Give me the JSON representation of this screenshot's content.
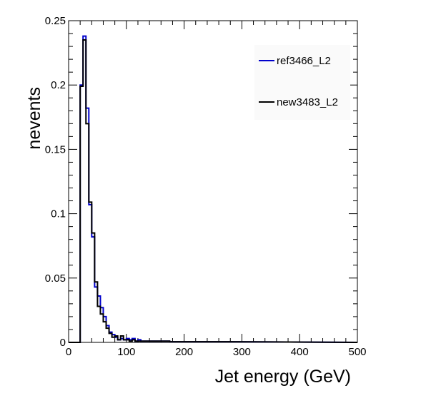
{
  "chart_data": {
    "type": "histogram",
    "xlabel": "Jet energy (GeV)",
    "ylabel": "nevents",
    "xlim": [
      0,
      500
    ],
    "ylim": [
      0,
      0.25
    ],
    "x_ticks": [
      "0",
      "100",
      "200",
      "300",
      "400",
      "500"
    ],
    "y_ticks": [
      "0",
      "0.05",
      "0.1",
      "0.15",
      "0.2",
      "0.25"
    ],
    "bin_width": 5,
    "legend_position": "top-right",
    "series": [
      {
        "name": "ref3466_L2",
        "color": "#0000cc",
        "bin_edges_start": 0,
        "values": [
          0,
          0,
          0,
          0,
          0.2,
          0.238,
          0.182,
          0.107,
          0.082,
          0.043,
          0.036,
          0.027,
          0.02,
          0.013,
          0.008,
          0.006,
          0.004,
          0.002,
          0.003,
          0.002,
          0.003,
          0.002,
          0.003,
          0.001,
          0.002,
          0.001,
          0.001,
          0.001,
          0.001,
          0.001,
          0.001,
          0.001,
          0.001,
          0.001,
          0.001,
          0.0005,
          0.0005,
          0.0005,
          0.0005,
          0.0005,
          0.0005,
          0.0005,
          0.0005,
          0.0005,
          0.0005,
          0.0005,
          0.0005,
          0.0005,
          0.0005,
          0.0005,
          0.0005,
          0.0005,
          0.0005,
          0.0005,
          0.0005,
          0.0005
        ]
      },
      {
        "name": "new3483_L2",
        "color": "#000000",
        "bin_edges_start": 0,
        "values": [
          0,
          0,
          0,
          0,
          0.199,
          0.235,
          0.17,
          0.109,
          0.085,
          0.047,
          0.028,
          0.022,
          0.016,
          0.011,
          0.007,
          0.004,
          0.005,
          0.002,
          0.005,
          0.002,
          0.002,
          0.001,
          0.002,
          0.001,
          0.001,
          0.001,
          0.001,
          0.001,
          0.001,
          0.001,
          0.001,
          0.001,
          0.001,
          0.001,
          0.001,
          0.0005,
          0.0005,
          0.0005,
          0.0005,
          0.0005,
          0.0005,
          0.0005,
          0.0005,
          0.0005,
          0.0005,
          0.0005,
          0.0005,
          0.0005,
          0.0005,
          0.0005,
          0.0005,
          0.0005,
          0.0005,
          0.0005,
          0.0005,
          0.0005
        ]
      }
    ]
  }
}
